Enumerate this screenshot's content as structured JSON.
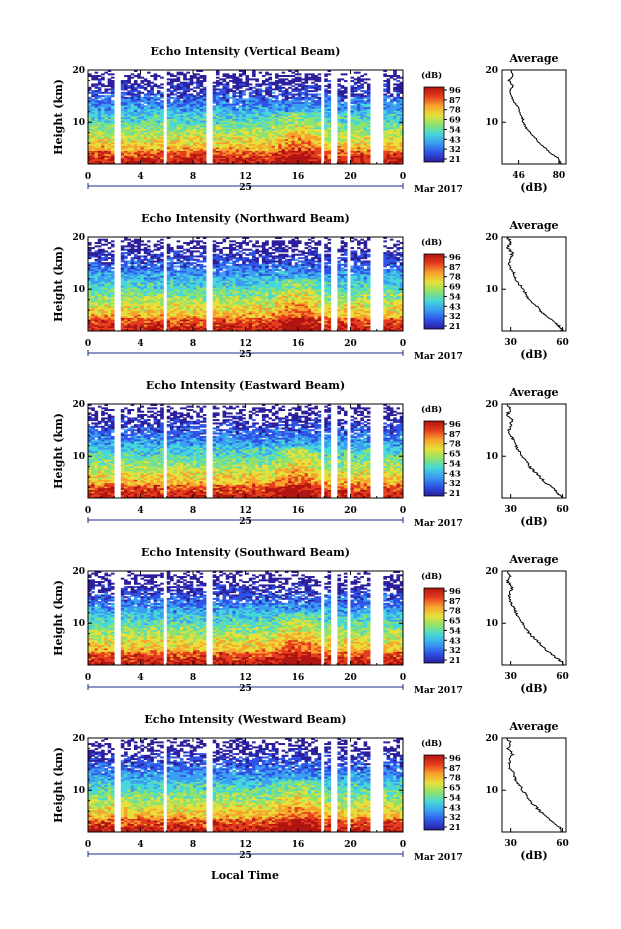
{
  "figure": {
    "x_axis_title": "Local Time",
    "month_label": "Mar 2017",
    "day_label": "25",
    "units_label": "(dB)",
    "height_axis_label": "Height (km)",
    "average_title": "Average",
    "average_xlabel": "(dB)",
    "colors": {
      "colormap": [
        "#2a1e9c",
        "#2f52e6",
        "#3a9cf2",
        "#46d7d8",
        "#8ee26d",
        "#e7e03a",
        "#f7a22c",
        "#e53d1e",
        "#b01410"
      ],
      "gap": "#ffffff",
      "frame": "#000000",
      "scale_line": "#1b2a8c"
    }
  },
  "chart_data": [
    {
      "type": "heatmap",
      "title": "Echo Intensity (Vertical Beam)",
      "xlabel": "",
      "ylabel": "Height (km)",
      "xlim": [
        0,
        24
      ],
      "ylim": [
        2,
        20
      ],
      "x_ticks": [
        "0",
        "4",
        "8",
        "12",
        "16",
        "20",
        "0"
      ],
      "y_ticks": [
        "10",
        "20"
      ],
      "z_units": "(dB)",
      "colorbar_ticks": [
        "96",
        "87",
        "78",
        "69",
        "54",
        "43",
        "32",
        "21"
      ],
      "data_gaps_hours": [
        [
          2.0,
          2.4
        ],
        [
          5.7,
          6.0
        ],
        [
          9.0,
          9.4
        ],
        [
          17.8,
          18.0
        ],
        [
          18.5,
          18.9
        ],
        [
          19.8,
          20.0
        ],
        [
          21.6,
          22.6
        ]
      ],
      "average_profile": {
        "title": "Average",
        "xlabel": "(dB)",
        "x_ticks": [
          "46",
          "80"
        ],
        "y_ticks": [
          "10",
          "20"
        ],
        "xlim": [
          32,
          86
        ],
        "ylim": [
          2,
          20
        ],
        "height_km": [
          2,
          3,
          4,
          5,
          6,
          7,
          8,
          9,
          10,
          11,
          12,
          13,
          14,
          15,
          16,
          17,
          18,
          19,
          20
        ],
        "intensity_db": [
          82,
          80,
          74,
          69,
          64,
          60,
          56,
          52,
          50,
          49,
          47,
          45,
          42,
          40,
          39,
          41,
          38,
          41,
          40
        ]
      }
    },
    {
      "type": "heatmap",
      "title": "Echo Intensity (Northward Beam)",
      "xlabel": "",
      "ylabel": "Height (km)",
      "xlim": [
        0,
        24
      ],
      "ylim": [
        2,
        20
      ],
      "x_ticks": [
        "0",
        "4",
        "8",
        "12",
        "16",
        "20",
        "0"
      ],
      "y_ticks": [
        "10",
        "20"
      ],
      "z_units": "(dB)",
      "colorbar_ticks": [
        "96",
        "87",
        "78",
        "69",
        "54",
        "43",
        "32",
        "21"
      ],
      "data_gaps_hours": [
        [
          2.0,
          2.4
        ],
        [
          5.7,
          6.0
        ],
        [
          9.0,
          9.4
        ],
        [
          17.8,
          18.0
        ],
        [
          18.5,
          18.9
        ],
        [
          19.8,
          20.0
        ],
        [
          21.6,
          22.6
        ]
      ],
      "average_profile": {
        "title": "Average",
        "xlabel": "(dB)",
        "x_ticks": [
          "30",
          "60"
        ],
        "y_ticks": [
          "10",
          "20"
        ],
        "xlim": [
          25,
          62
        ],
        "ylim": [
          2,
          20
        ],
        "height_km": [
          2,
          3,
          4,
          5,
          6,
          7,
          8,
          9,
          10,
          11,
          12,
          13,
          14,
          15,
          16,
          17,
          18,
          19,
          20
        ],
        "intensity_db": [
          60,
          58,
          54,
          50,
          47,
          44,
          41,
          39,
          37,
          35,
          33,
          32,
          30,
          29,
          30,
          31,
          28,
          30,
          28
        ]
      }
    },
    {
      "type": "heatmap",
      "title": "Echo Intensity (Eastward Beam)",
      "xlabel": "",
      "ylabel": "Height (km)",
      "xlim": [
        0,
        24
      ],
      "ylim": [
        2,
        20
      ],
      "x_ticks": [
        "0",
        "4",
        "8",
        "12",
        "16",
        "20",
        "0"
      ],
      "y_ticks": [
        "10",
        "20"
      ],
      "z_units": "(dB)",
      "colorbar_ticks": [
        "96",
        "87",
        "78",
        "65",
        "54",
        "43",
        "32",
        "21"
      ],
      "data_gaps_hours": [
        [
          2.0,
          2.4
        ],
        [
          5.7,
          6.0
        ],
        [
          9.0,
          9.4
        ],
        [
          17.8,
          18.0
        ],
        [
          18.5,
          18.9
        ],
        [
          19.8,
          20.0
        ],
        [
          21.6,
          22.6
        ]
      ],
      "average_profile": {
        "title": "Average",
        "xlabel": "(dB)",
        "x_ticks": [
          "30",
          "60"
        ],
        "y_ticks": [
          "10",
          "20"
        ],
        "xlim": [
          25,
          62
        ],
        "ylim": [
          2,
          20
        ],
        "height_km": [
          2,
          3,
          4,
          5,
          6,
          7,
          8,
          9,
          10,
          11,
          12,
          13,
          14,
          15,
          16,
          17,
          18,
          19,
          20
        ],
        "intensity_db": [
          60,
          57,
          54,
          50,
          47,
          44,
          41,
          39,
          37,
          35,
          33,
          32,
          30,
          29,
          30,
          31,
          28,
          30,
          28
        ]
      }
    },
    {
      "type": "heatmap",
      "title": "Echo Intensity (Southward Beam)",
      "xlabel": "",
      "ylabel": "Height (km)",
      "xlim": [
        0,
        24
      ],
      "ylim": [
        2,
        20
      ],
      "x_ticks": [
        "0",
        "4",
        "8",
        "12",
        "16",
        "20",
        "0"
      ],
      "y_ticks": [
        "10",
        "20"
      ],
      "z_units": "(dB)",
      "colorbar_ticks": [
        "96",
        "87",
        "78",
        "65",
        "54",
        "43",
        "32",
        "21"
      ],
      "data_gaps_hours": [
        [
          2.0,
          2.4
        ],
        [
          5.7,
          6.0
        ],
        [
          9.0,
          9.4
        ],
        [
          17.8,
          18.0
        ],
        [
          18.5,
          18.9
        ],
        [
          19.8,
          20.0
        ],
        [
          21.6,
          22.6
        ]
      ],
      "average_profile": {
        "title": "Average",
        "xlabel": "(dB)",
        "x_ticks": [
          "30",
          "60"
        ],
        "y_ticks": [
          "10",
          "20"
        ],
        "xlim": [
          25,
          62
        ],
        "ylim": [
          2,
          20
        ],
        "height_km": [
          2,
          3,
          4,
          5,
          6,
          7,
          8,
          9,
          10,
          11,
          12,
          13,
          14,
          15,
          16,
          17,
          18,
          19,
          20
        ],
        "intensity_db": [
          61,
          58,
          54,
          50,
          47,
          44,
          41,
          39,
          37,
          35,
          33,
          32,
          30,
          29,
          30,
          31,
          28,
          30,
          28
        ]
      }
    },
    {
      "type": "heatmap",
      "title": "Echo Intensity (Westward Beam)",
      "xlabel": "Local Time",
      "ylabel": "Height (km)",
      "xlim": [
        0,
        24
      ],
      "ylim": [
        2,
        20
      ],
      "x_ticks": [
        "0",
        "4",
        "8",
        "12",
        "16",
        "20",
        "0"
      ],
      "y_ticks": [
        "10",
        "20"
      ],
      "z_units": "(dB)",
      "colorbar_ticks": [
        "96",
        "87",
        "78",
        "65",
        "54",
        "43",
        "32",
        "21"
      ],
      "data_gaps_hours": [
        [
          2.0,
          2.4
        ],
        [
          5.7,
          6.0
        ],
        [
          9.0,
          9.4
        ],
        [
          17.8,
          18.0
        ],
        [
          18.5,
          18.9
        ],
        [
          19.8,
          20.0
        ],
        [
          21.6,
          22.6
        ]
      ],
      "average_profile": {
        "title": "Average",
        "xlabel": "(dB)",
        "x_ticks": [
          "30",
          "60"
        ],
        "y_ticks": [
          "10",
          "20"
        ],
        "xlim": [
          25,
          62
        ],
        "ylim": [
          2,
          20
        ],
        "height_km": [
          2,
          3,
          4,
          5,
          6,
          7,
          8,
          9,
          10,
          11,
          12,
          13,
          14,
          15,
          16,
          17,
          18,
          19,
          20
        ],
        "intensity_db": [
          60,
          58,
          54,
          50,
          47,
          44,
          41,
          39,
          37,
          35,
          33,
          32,
          30,
          29,
          30,
          31,
          28,
          30,
          28
        ]
      }
    }
  ]
}
